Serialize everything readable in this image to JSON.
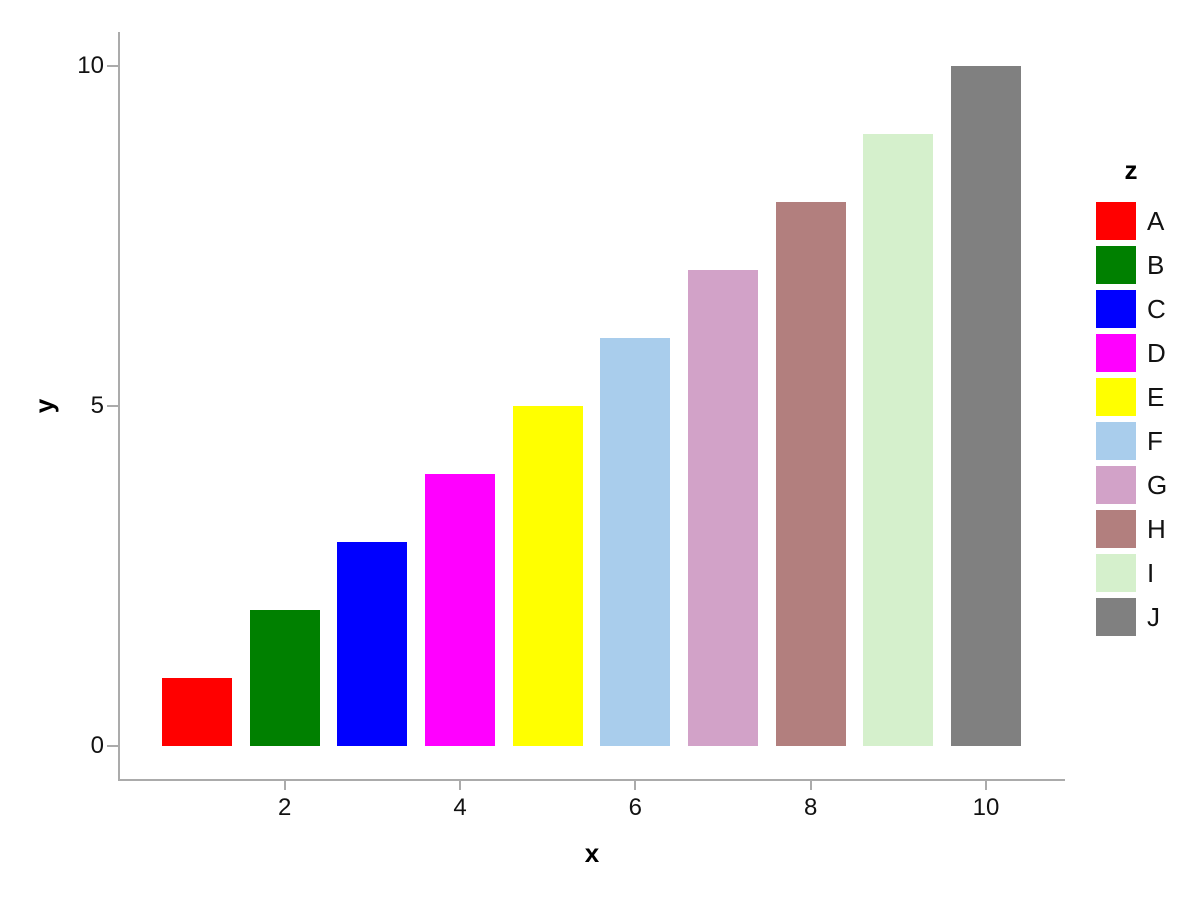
{
  "chart_data": {
    "type": "bar",
    "title": "",
    "xlabel": "x",
    "ylabel": "y",
    "x": [
      1,
      2,
      3,
      4,
      5,
      6,
      7,
      8,
      9,
      10
    ],
    "values": [
      1,
      2,
      3,
      4,
      5,
      6,
      7,
      8,
      9,
      10
    ],
    "categories": [
      "A",
      "B",
      "C",
      "D",
      "E",
      "F",
      "G",
      "H",
      "I",
      "J"
    ],
    "colors": [
      "#ff0000",
      "#008000",
      "#0000ff",
      "#ff00ff",
      "#ffff00",
      "#a9cdec",
      "#d2a2c8",
      "#b27f7e",
      "#d5f0cc",
      "#808080"
    ],
    "x_ticks": [
      2,
      4,
      6,
      8,
      10
    ],
    "y_ticks": [
      0,
      5,
      10
    ],
    "xlim": [
      0.1,
      10.9
    ],
    "ylim": [
      -0.5,
      10.5
    ],
    "grid": false,
    "bar_width": 0.8,
    "legend": {
      "title": "z",
      "position": "right",
      "labels": [
        "A",
        "B",
        "C",
        "D",
        "E",
        "F",
        "G",
        "H",
        "I",
        "J"
      ]
    }
  },
  "style": {
    "spine_color": "#ababab",
    "tick_color": "#ababab",
    "text_color": "#121212",
    "background": "#ffffff"
  }
}
